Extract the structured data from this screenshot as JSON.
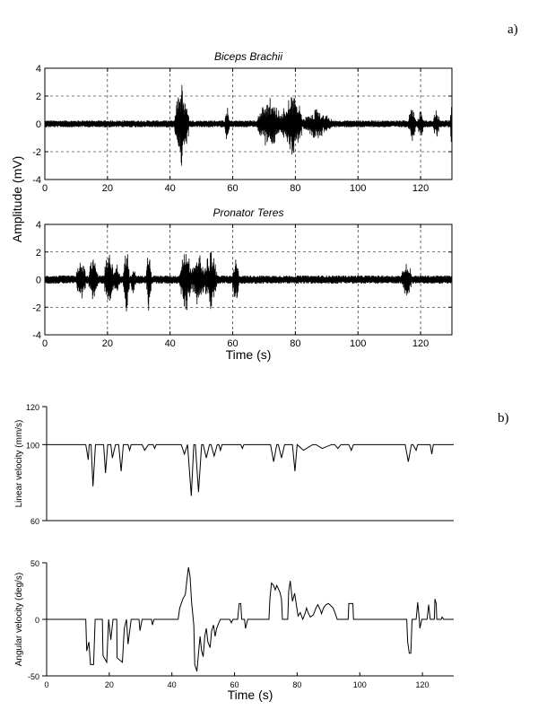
{
  "panels": {
    "a": "a)",
    "b": "b)"
  },
  "shared_labels": {
    "amplitude_ylabel": "Amplitude (mV)"
  },
  "chart_data": [
    {
      "type": "line",
      "title": "Biceps Brachii",
      "xlabel": "",
      "ylabel": "Amplitude (mV)",
      "xlim": [
        0,
        130
      ],
      "ylim": [
        -4,
        4
      ],
      "xticks": [
        0,
        20,
        40,
        60,
        80,
        100,
        120
      ],
      "yticks": [
        -4,
        -2,
        0,
        2,
        4
      ],
      "grid": true,
      "series": [
        {
          "baseline_amplitude": 0.25,
          "bursts": [
            {
              "x": [
                12,
                16
              ],
              "amp": 0.3
            },
            {
              "x": [
                41.5,
                46
              ],
              "amp": 3.5
            },
            {
              "x": [
                57.5,
                59
              ],
              "amp": 1.6
            },
            {
              "x": [
                68,
                76
              ],
              "amp": 2.2
            },
            {
              "x": [
                76,
                82
              ],
              "amp": 2.8
            },
            {
              "x": [
                82,
                91.5
              ],
              "amp": 1.3
            },
            {
              "x": [
                116,
                118.5
              ],
              "amp": 1.5
            },
            {
              "x": [
                119,
                121
              ],
              "amp": 1.2
            },
            {
              "x": [
                124,
                126
              ],
              "amp": 1.4
            },
            {
              "x": [
                129.5,
                130
              ],
              "amp": 2.3
            }
          ]
        }
      ]
    },
    {
      "type": "line",
      "title": "Pronator Teres",
      "xlabel": "Time (s)",
      "ylabel": "Amplitude (mV)",
      "xlim": [
        0,
        130
      ],
      "ylim": [
        -4,
        4
      ],
      "xticks": [
        0,
        20,
        40,
        60,
        80,
        100,
        120
      ],
      "yticks": [
        -4,
        -2,
        0,
        2,
        4
      ],
      "grid": true,
      "series": [
        {
          "baseline_amplitude": 0.3,
          "bursts": [
            {
              "x": [
                10,
                13
              ],
              "amp": 1.8
            },
            {
              "x": [
                14,
                17
              ],
              "amp": 2.0
            },
            {
              "x": [
                19,
                22
              ],
              "amp": 2.4
            },
            {
              "x": [
                22,
                24
              ],
              "amp": 1.5
            },
            {
              "x": [
                25,
                27
              ],
              "amp": 2.9
            },
            {
              "x": [
                27.5,
                29
              ],
              "amp": 1.5
            },
            {
              "x": [
                32.5,
                34
              ],
              "amp": 3.0
            },
            {
              "x": [
                43,
                47
              ],
              "amp": 2.8
            },
            {
              "x": [
                47,
                51
              ],
              "amp": 2.3
            },
            {
              "x": [
                51,
                55
              ],
              "amp": 2.6
            },
            {
              "x": [
                60,
                62
              ],
              "amp": 2.2
            },
            {
              "x": [
                114,
                117
              ],
              "amp": 1.8
            }
          ]
        }
      ]
    },
    {
      "type": "line",
      "title": "",
      "xlabel": "",
      "ylabel": "Linear velocity (mm/s)",
      "xlim": [
        0,
        130
      ],
      "ylim": [
        60,
        120
      ],
      "yticks": [
        60,
        100,
        120
      ],
      "grid": false,
      "series": [
        {
          "baseline": 100,
          "dips": [
            {
              "x": [
                12.5,
                13.3,
                13.6
              ],
              "y": 92
            },
            {
              "x": [
                14.2,
                14.8,
                15.6
              ],
              "y": 78
            },
            {
              "x": [
                18.2,
                18.8,
                19.5
              ],
              "y": 85
            },
            {
              "x": [
                20.5,
                21,
                22
              ],
              "y": 93
            },
            {
              "x": [
                23,
                23.8,
                24.5
              ],
              "y": 86
            },
            {
              "x": [
                26,
                26.5,
                27
              ],
              "y": 97
            },
            {
              "x": [
                30.5,
                31.3,
                32.5
              ],
              "y": 97
            },
            {
              "x": [
                34,
                34.5,
                35
              ],
              "y": 98
            },
            {
              "x": [
                43,
                44,
                45
              ],
              "y": 95
            },
            {
              "x": [
                45,
                46.2,
                47
              ],
              "y": 73
            },
            {
              "x": [
                47.5,
                48.5,
                49.5
              ],
              "y": 75
            },
            {
              "x": [
                50,
                51,
                52
              ],
              "y": 93
            },
            {
              "x": [
                52.5,
                53.5,
                54.5
              ],
              "y": 94
            },
            {
              "x": [
                55,
                55.5,
                56
              ],
              "y": 97
            },
            {
              "x": [
                62,
                62.5,
                63
              ],
              "y": 98
            },
            {
              "x": [
                71.5,
                72.5,
                73.5
              ],
              "y": 91
            },
            {
              "x": [
                74,
                75,
                76
              ],
              "y": 93
            },
            {
              "x": [
                78.5,
                79.3,
                80
              ],
              "y": 86
            },
            {
              "x": [
                80,
                82,
                85
              ],
              "y": 97
            },
            {
              "x": [
                86,
                88,
                91
              ],
              "y": 98
            },
            {
              "x": [
                92,
                93,
                94
              ],
              "y": 98
            },
            {
              "x": [
                96.5,
                97.3,
                98
              ],
              "y": 97
            },
            {
              "x": [
                114.5,
                115.5,
                116.5
              ],
              "y": 91
            },
            {
              "x": [
                117,
                118,
                118.5
              ],
              "y": 97
            },
            {
              "x": [
                122.5,
                123,
                123.5
              ],
              "y": 95
            }
          ]
        }
      ]
    },
    {
      "type": "line",
      "title": "",
      "xlabel": "Time (s)",
      "ylabel": "Angular velocity (deg/s)",
      "xlim": [
        0,
        130
      ],
      "ylim": [
        -50,
        50
      ],
      "xticks": [
        0,
        20,
        40,
        60,
        80,
        100,
        120
      ],
      "yticks": [
        -50,
        0,
        50
      ],
      "grid": false,
      "series": [
        {
          "points": [
            [
              0,
              0
            ],
            [
              12.5,
              0
            ],
            [
              12.8,
              -28
            ],
            [
              13.5,
              -20
            ],
            [
              14,
              -40
            ],
            [
              15,
              -40
            ],
            [
              15.5,
              0
            ],
            [
              17.8,
              0
            ],
            [
              18,
              -32
            ],
            [
              19.2,
              -38
            ],
            [
              19.8,
              0
            ],
            [
              20.5,
              -18
            ],
            [
              21.2,
              0
            ],
            [
              22.4,
              0
            ],
            [
              22.5,
              -34
            ],
            [
              24.2,
              -38
            ],
            [
              24.8,
              -8
            ],
            [
              25.5,
              0
            ],
            [
              26,
              -22
            ],
            [
              27,
              0
            ],
            [
              29.5,
              0
            ],
            [
              29.8,
              -10
            ],
            [
              30.5,
              0
            ],
            [
              33.5,
              0
            ],
            [
              33.8,
              -5
            ],
            [
              34.3,
              0
            ],
            [
              42,
              0
            ],
            [
              42.5,
              10
            ],
            [
              43.5,
              18
            ],
            [
              44.3,
              22
            ],
            [
              44.8,
              35
            ],
            [
              45.3,
              46
            ],
            [
              45.8,
              38
            ],
            [
              46.3,
              15
            ],
            [
              47,
              -5
            ],
            [
              47.3,
              -40
            ],
            [
              48,
              -46
            ],
            [
              48.5,
              -30
            ],
            [
              49,
              -15
            ],
            [
              49.5,
              -28
            ],
            [
              50,
              -33
            ],
            [
              50.5,
              -15
            ],
            [
              51,
              -8
            ],
            [
              51.5,
              -20
            ],
            [
              52.2,
              -25
            ],
            [
              52.7,
              -10
            ],
            [
              53.3,
              -5
            ],
            [
              53.8,
              -15
            ],
            [
              54.3,
              -8
            ],
            [
              55,
              -3
            ],
            [
              55.5,
              0
            ],
            [
              58.5,
              0
            ],
            [
              59,
              -3
            ],
            [
              59.5,
              0
            ],
            [
              61,
              0
            ],
            [
              61.5,
              14
            ],
            [
              62,
              14
            ],
            [
              62.3,
              0
            ],
            [
              63.2,
              0
            ],
            [
              63.5,
              -8
            ],
            [
              64.2,
              0
            ],
            [
              71,
              0
            ],
            [
              71.3,
              18
            ],
            [
              71.8,
              32
            ],
            [
              72.5,
              30
            ],
            [
              73,
              26
            ],
            [
              73.5,
              30
            ],
            [
              74.5,
              24
            ],
            [
              75,
              18
            ],
            [
              75.3,
              0
            ],
            [
              77,
              0
            ],
            [
              77.3,
              25
            ],
            [
              77.8,
              34
            ],
            [
              78.5,
              16
            ],
            [
              79.2,
              23
            ],
            [
              79.8,
              12
            ],
            [
              80.3,
              3
            ],
            [
              81,
              6
            ],
            [
              81.8,
              0
            ],
            [
              82.5,
              5
            ],
            [
              83,
              10
            ],
            [
              83.5,
              6
            ],
            [
              84.2,
              2
            ],
            [
              85.2,
              4
            ],
            [
              86,
              10
            ],
            [
              86.6,
              13
            ],
            [
              87.3,
              9
            ],
            [
              87.8,
              5
            ],
            [
              88.4,
              10
            ],
            [
              89.2,
              13
            ],
            [
              90,
              14
            ],
            [
              90.8,
              12
            ],
            [
              91.5,
              10
            ],
            [
              92.2,
              5
            ],
            [
              92.8,
              0
            ],
            [
              96.3,
              0
            ],
            [
              96.5,
              14
            ],
            [
              97.8,
              14
            ],
            [
              98,
              0
            ],
            [
              115,
              0
            ],
            [
              115.3,
              -20
            ],
            [
              115.8,
              -30
            ],
            [
              116.3,
              -30
            ],
            [
              116.7,
              0
            ],
            [
              118,
              0
            ],
            [
              118.5,
              15
            ],
            [
              119,
              0
            ],
            [
              119.2,
              -8
            ],
            [
              119.8,
              0
            ],
            [
              121.5,
              0
            ],
            [
              122,
              13
            ],
            [
              122.5,
              0
            ],
            [
              123.8,
              0
            ],
            [
              124,
              18
            ],
            [
              124.4,
              14
            ],
            [
              124.6,
              0
            ],
            [
              126,
              0
            ],
            [
              126.3,
              2
            ],
            [
              126.8,
              0
            ],
            [
              130,
              0
            ]
          ]
        }
      ]
    }
  ]
}
